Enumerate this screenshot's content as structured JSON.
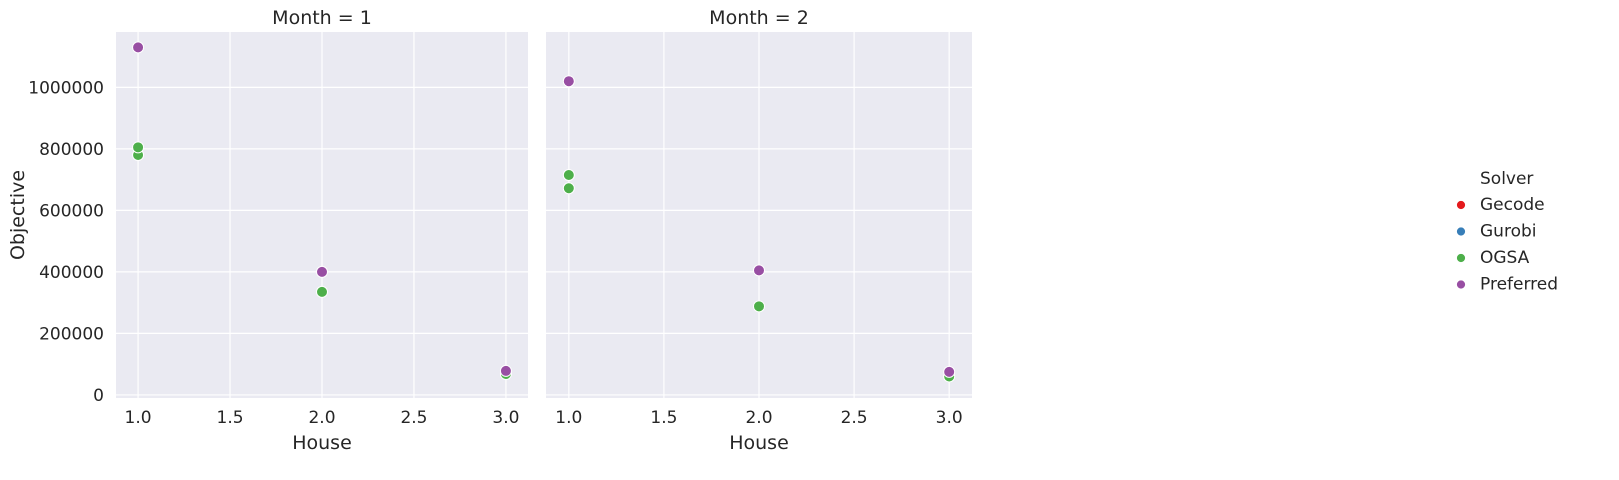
{
  "chart_data": {
    "type": "scatter",
    "facet_variable": "Month",
    "ylabel": "Objective",
    "xlabel": "House",
    "xlim": [
      0.88,
      3.12
    ],
    "ylim": [
      -10000,
      1180000
    ],
    "xticks": [
      "1.0",
      "1.5",
      "2.0",
      "2.5",
      "3.0"
    ],
    "xtick_values": [
      1.0,
      1.5,
      2.0,
      2.5,
      3.0
    ],
    "yticks": [
      "0",
      "200000",
      "400000",
      "600000",
      "800000",
      "1000000"
    ],
    "ytick_values": [
      0,
      200000,
      400000,
      600000,
      800000,
      1000000
    ],
    "grid": true,
    "legend": {
      "title": "Solver",
      "position": "right",
      "entries": [
        {
          "name": "Gecode",
          "color": "#e41a1c"
        },
        {
          "name": "Gurobi",
          "color": "#377eb8"
        },
        {
          "name": "OGSA",
          "color": "#4daf4a"
        },
        {
          "name": "Preferred",
          "color": "#984ea3"
        }
      ]
    },
    "panels": [
      {
        "title": "Month = 1",
        "points": [
          {
            "series": "OGSA",
            "x": 1.0,
            "y": 780000
          },
          {
            "series": "OGSA",
            "x": 1.0,
            "y": 805000
          },
          {
            "series": "Preferred",
            "x": 1.0,
            "y": 1130000
          },
          {
            "series": "OGSA",
            "x": 2.0,
            "y": 335000
          },
          {
            "series": "Preferred",
            "x": 2.0,
            "y": 400000
          },
          {
            "series": "OGSA",
            "x": 3.0,
            "y": 68000
          },
          {
            "series": "Preferred",
            "x": 3.0,
            "y": 78000
          }
        ]
      },
      {
        "title": "Month = 2",
        "points": [
          {
            "series": "OGSA",
            "x": 1.0,
            "y": 672000
          },
          {
            "series": "OGSA",
            "x": 1.0,
            "y": 715000
          },
          {
            "series": "Preferred",
            "x": 1.0,
            "y": 1020000
          },
          {
            "series": "OGSA",
            "x": 2.0,
            "y": 288000
          },
          {
            "series": "Preferred",
            "x": 2.0,
            "y": 405000
          },
          {
            "series": "OGSA",
            "x": 3.0,
            "y": 60000
          },
          {
            "series": "Preferred",
            "x": 3.0,
            "y": 75000
          }
        ]
      }
    ]
  }
}
